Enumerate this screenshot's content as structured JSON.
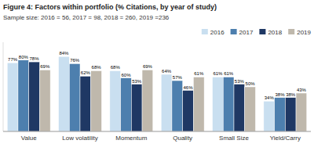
{
  "chart_data": {
    "type": "bar",
    "title": "Figure 4: Factors within portfolio (% Citations, by year of study)",
    "subtitle": "Sample size: 2016 = 56, 2017 = 98, 2018 = 260, 2019 =236",
    "categories": [
      "Value",
      "Low volatility",
      "Momentum",
      "Quality",
      "Small Size",
      "Yield/Carry"
    ],
    "series": [
      {
        "name": "2016",
        "color": "#c9dff0",
        "values": [
          77,
          84,
          68,
          64,
          61,
          34
        ],
        "value_labels": [
          "77%",
          "84%",
          "68%",
          "64%",
          "61%",
          "34%"
        ]
      },
      {
        "name": "2017",
        "color": "#4d7fae",
        "values": [
          80,
          76,
          60,
          57,
          61,
          38
        ],
        "value_labels": [
          "80%",
          "76%",
          "60%",
          "57%",
          "61%",
          "38%"
        ]
      },
      {
        "name": "2018",
        "color": "#1f3864",
        "values": [
          78,
          62,
          53,
          46,
          53,
          38
        ],
        "value_labels": [
          "78%",
          "62%",
          "53%",
          "46%",
          "53%",
          "38%"
        ]
      },
      {
        "name": "2019",
        "color": "#bfb8ac",
        "values": [
          69,
          68,
          69,
          61,
          50,
          43
        ],
        "value_labels": [
          "69%",
          "68%",
          "69%",
          "61%",
          "50%",
          "43%"
        ]
      }
    ],
    "ylim": [
      0,
      100
    ],
    "data_labels": true,
    "tick_labels": "x",
    "legend": "upper right"
  }
}
